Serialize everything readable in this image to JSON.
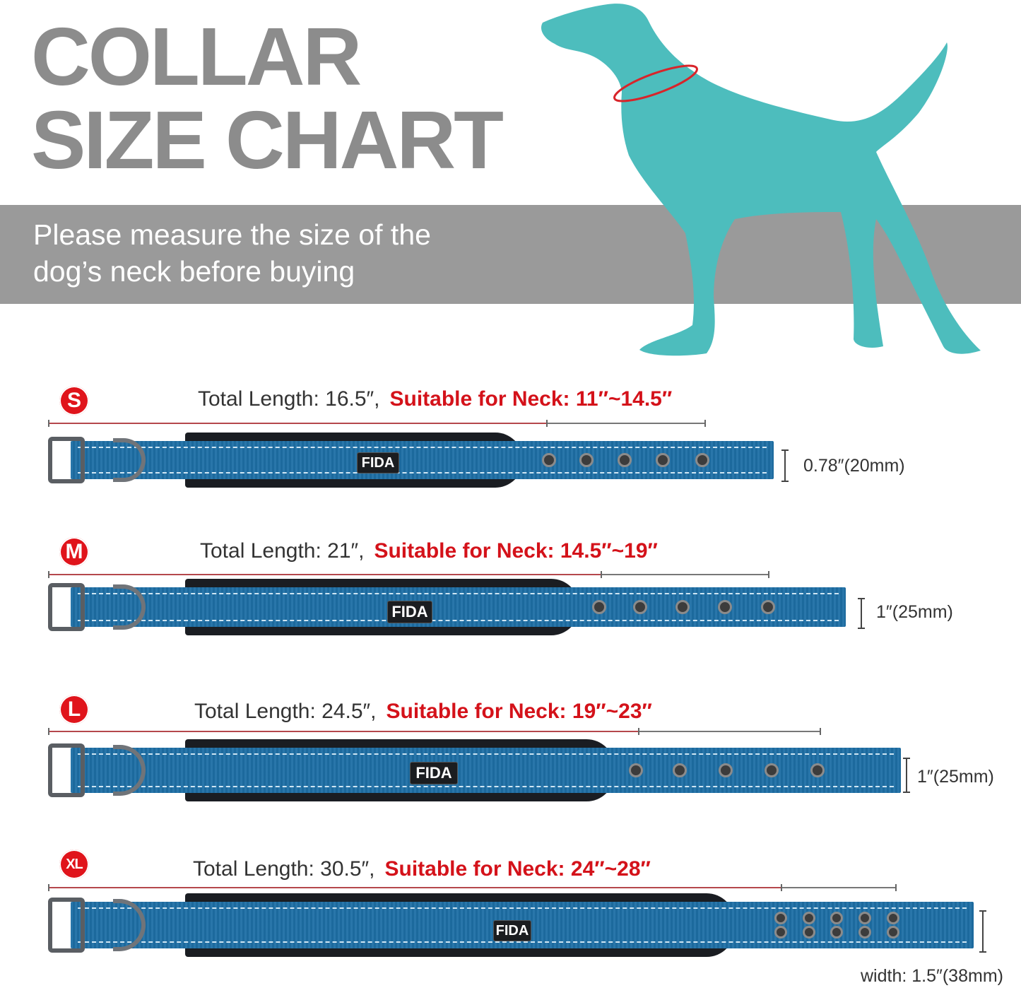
{
  "header": {
    "title_line1": "COLLAR",
    "title_line2": "SIZE CHART",
    "instruction_line1": "Please measure the size of the",
    "instruction_line2": "dog’s neck before buying"
  },
  "brand": "FIDA",
  "colors": {
    "title_gray": "#8c8c8c",
    "band_gray": "#9a9a9a",
    "dog_teal": "#4dbdbd",
    "accent_red": "#d4121a",
    "collar_blue": "#1e6fa5"
  },
  "sizes": [
    {
      "badge": "S",
      "total_length": "Total Length: 16.5″,",
      "suitable": "Suitable for Neck: 11″~14.5″",
      "width_label": "0.78″(20mm)"
    },
    {
      "badge": "M",
      "total_length": "Total Length: 21″,",
      "suitable": "Suitable for Neck: 14.5″~19″",
      "width_label": "1″(25mm)"
    },
    {
      "badge": "L",
      "total_length": "Total Length: 24.5″,",
      "suitable": "Suitable for Neck: 19″~23″",
      "width_label": "1″(25mm)"
    },
    {
      "badge": "XL",
      "total_length": "Total Length: 30.5″,",
      "suitable": "Suitable for Neck: 24″~28″",
      "width_label": "width: 1.5″(38mm)"
    }
  ]
}
